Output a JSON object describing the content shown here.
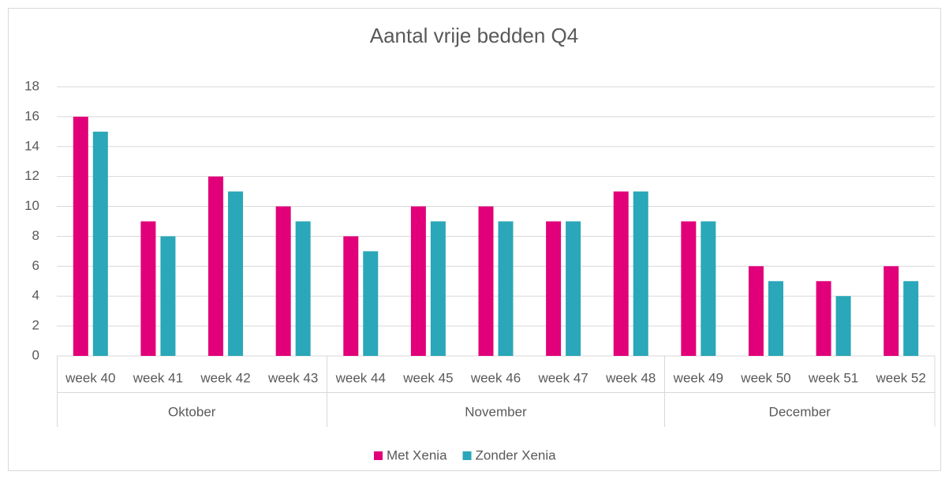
{
  "chart_data": {
    "type": "bar",
    "title": "Aantal vrije bedden Q4",
    "category_groups": [
      {
        "name": "Oktober",
        "categories": [
          "week 40",
          "week 41",
          "week 42",
          "week 43"
        ]
      },
      {
        "name": "November",
        "categories": [
          "week 44",
          "week 45",
          "week 46",
          "week 47",
          "week 48"
        ]
      },
      {
        "name": "December",
        "categories": [
          "week 49",
          "week 50",
          "week 51",
          "week 52"
        ]
      }
    ],
    "series": [
      {
        "name": "Met Xenia",
        "color": "#e2007a",
        "values": [
          16,
          9,
          12,
          10,
          8,
          10,
          10,
          9,
          11,
          9,
          6,
          5,
          6
        ]
      },
      {
        "name": "Zonder Xenia",
        "color": "#2aa7b8",
        "values": [
          15,
          8,
          11,
          9,
          7,
          9,
          9,
          9,
          11,
          9,
          5,
          4,
          5
        ]
      }
    ],
    "ylim": [
      0,
      18
    ],
    "yticks": [
      0,
      2,
      4,
      6,
      8,
      10,
      12,
      14,
      16,
      18
    ],
    "grid": true,
    "legend": "bottom"
  }
}
